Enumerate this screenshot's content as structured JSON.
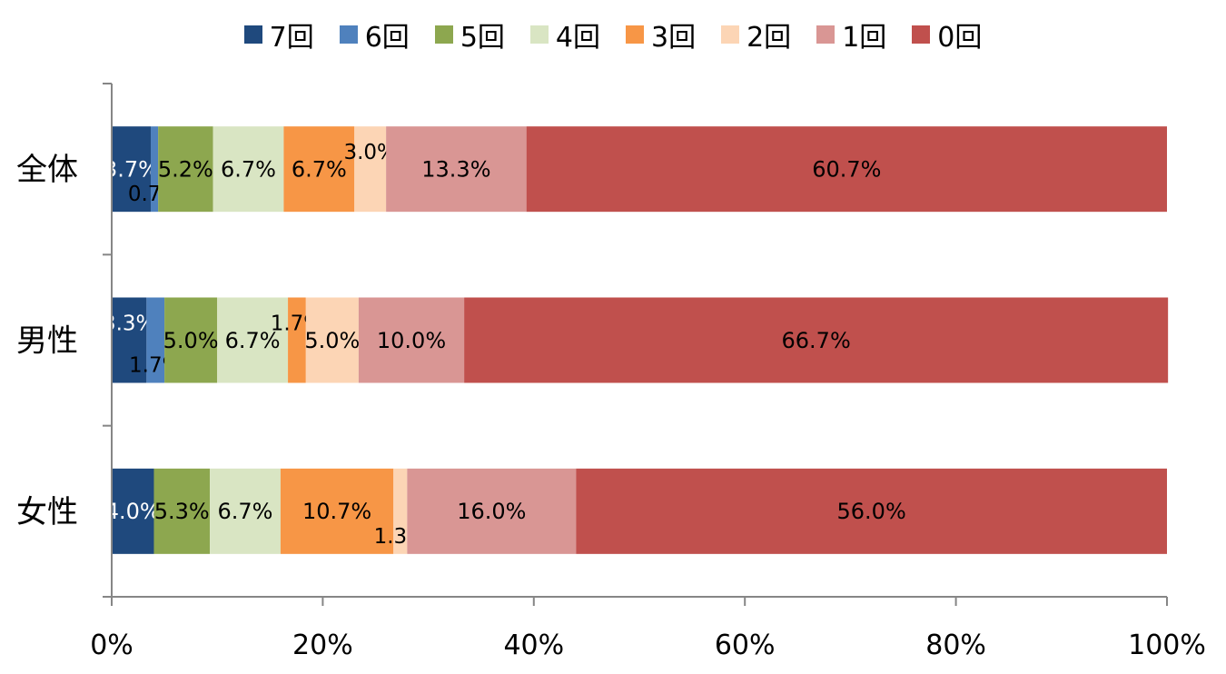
{
  "chart_data": {
    "type": "bar",
    "orientation": "horizontal",
    "stacked": "percent",
    "categories": [
      "全体",
      "男性",
      "女性"
    ],
    "series": [
      {
        "name": "7回",
        "color": "#1F497D",
        "values": [
          3.7,
          3.3,
          4.0
        ],
        "labels": [
          "3.7%",
          "3.3%",
          "4.0%"
        ]
      },
      {
        "name": "6回",
        "color": "#4F81BD",
        "values": [
          0.7,
          1.7,
          0.0
        ],
        "labels": [
          "0.7%",
          "1.7%",
          ""
        ]
      },
      {
        "name": "5回",
        "color": "#8DA74F",
        "values": [
          5.2,
          5.0,
          5.3
        ],
        "labels": [
          "5.2%",
          "5.0%",
          "5.3%"
        ]
      },
      {
        "name": "4回",
        "color": "#D9E5C3",
        "values": [
          6.7,
          6.7,
          6.7
        ],
        "labels": [
          "6.7%",
          "6.7%",
          "6.7%"
        ]
      },
      {
        "name": "3回",
        "color": "#F79646",
        "values": [
          6.7,
          1.7,
          10.7
        ],
        "labels": [
          "6.7%",
          "1.7%",
          "10.7%"
        ]
      },
      {
        "name": "2回",
        "color": "#FCD5B5",
        "values": [
          3.0,
          5.0,
          1.3
        ],
        "labels": [
          "3.0%",
          "5.0%",
          "1.3%"
        ]
      },
      {
        "name": "1回",
        "color": "#D99694",
        "values": [
          13.3,
          10.0,
          16.0
        ],
        "labels": [
          "13.3%",
          "10.0%",
          "16.0%"
        ]
      },
      {
        "name": "0回",
        "color": "#C0504D",
        "values": [
          60.7,
          66.7,
          56.0
        ],
        "labels": [
          "60.7%",
          "66.7%",
          "56.0%"
        ]
      }
    ],
    "xlim": [
      0,
      100
    ],
    "x_ticks": [
      "0%",
      "20%",
      "40%",
      "60%",
      "80%",
      "100%"
    ],
    "legend_position": "top",
    "grid": false
  }
}
